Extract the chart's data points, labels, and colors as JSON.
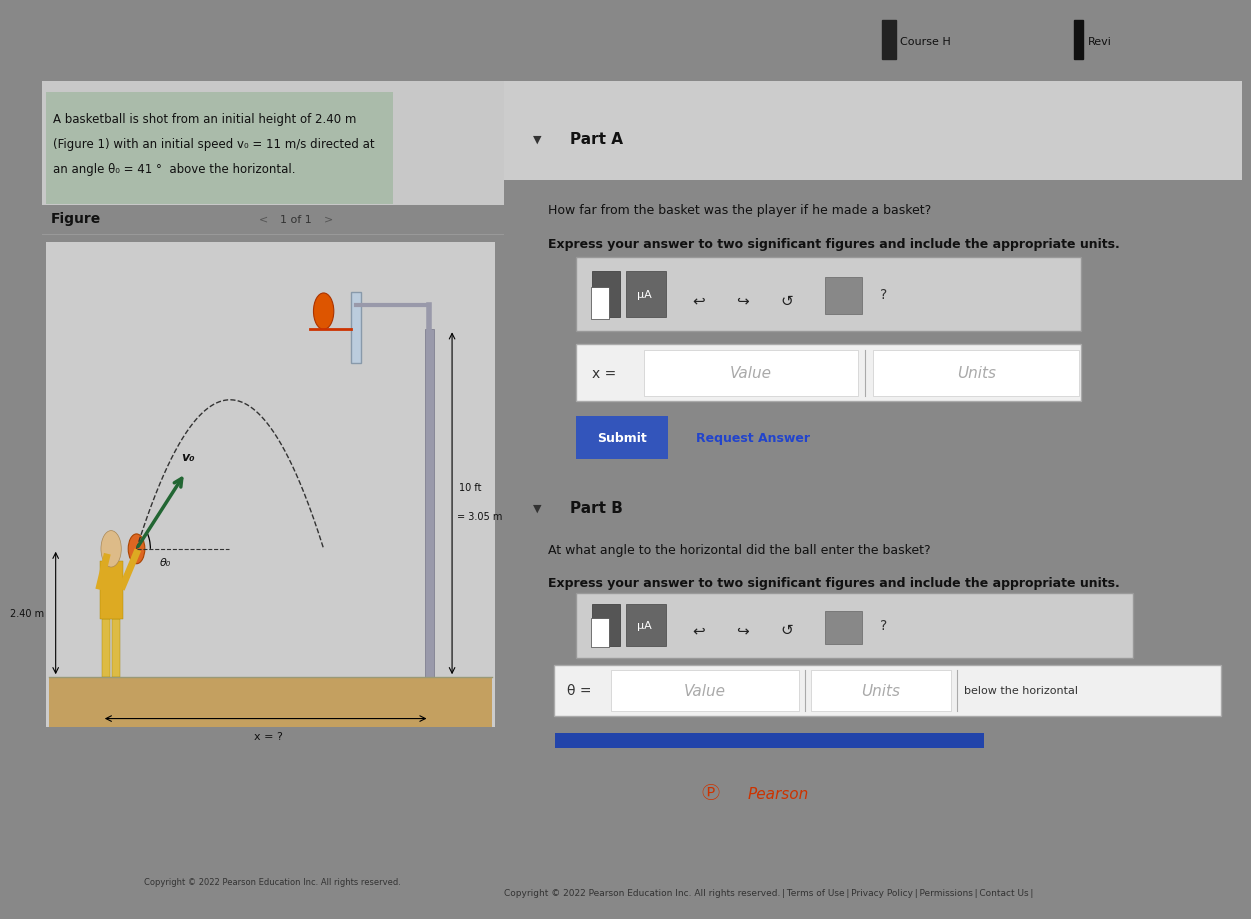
{
  "bg_outer": "#888888",
  "bg_main": "#c8c8c8",
  "bg_right": "#d8d8d8",
  "bg_figure_area": "#c0c0c0",
  "green_highlight": "#aaccaa",
  "floor_color": "#c8a87a",
  "problem_line1": "A basketball is shot from an initial height of 2.40 m",
  "problem_line2": "(Figure 1) with an initial speed v₀ = 11 m/s directed at",
  "problem_line3": "an angle θ₀ = 41 °  above the horizontal.",
  "figure_label": "Figure",
  "figure_nav": "1 of 1",
  "part_a_label": "Part A",
  "part_a_q1": "How far from the basket was the player if he made a basket?",
  "part_a_q2": "Express your answer to two significant figures and include the appropriate units.",
  "part_b_label": "Part B",
  "part_b_q1": "At what angle to the horizontal did the ball enter the basket?",
  "part_b_q2": "Express your answer to two significant figures and include the appropriate units.",
  "submit_text": "Submit",
  "request_answer_text": "Request Answer",
  "x_eq": "x =",
  "theta_eq": "θ =",
  "value_text": "Value",
  "units_text": "Units",
  "below_horiz": "below the horizontal",
  "height_label": "2.40 m",
  "basket_ht_label": "10 ft\n= 3.05 m",
  "x_label": "x = ?",
  "v0_label": "v₀",
  "theta0_label": "θ₀",
  "mu_A": "μA",
  "submit_color": "#3355bb",
  "req_ans_color": "#2255cc",
  "pearson_color": "#cc3300",
  "copyright_text": "Copyright © 2022 Pearson Education Inc. All rights reserved. | Terms of Use | Privacy Policy | Permissions | Contact Us |",
  "pearson_text": "Pearson",
  "course_text": "Course H",
  "revi_text": "Revi",
  "toolbar_bg": "#888888",
  "toolbar_icon_dark": "#555555",
  "input_bg": "#ffffff"
}
